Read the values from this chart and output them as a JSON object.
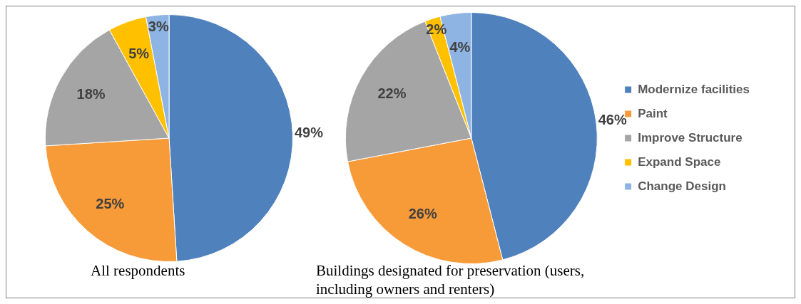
{
  "chart_data": [
    {
      "type": "pie",
      "title": "All respondents",
      "categories": [
        null,
        null,
        null,
        null,
        null
      ],
      "values": [
        49,
        25,
        18,
        5,
        3
      ],
      "colors": [
        "#4f81bd",
        "#f79a38",
        "#a5a5a5",
        "#ffc000",
        "#8eb4e3"
      ],
      "value_labels": [
        "49%",
        "25%",
        "18%",
        "5%",
        "3%"
      ],
      "legend": false
    },
    {
      "type": "pie",
      "title": "Buildings designated for preservation (users, including owners and renters)",
      "categories": [
        "Modernize facilities",
        "Paint",
        "Improve Structure",
        "Expand Space",
        "Change Design"
      ],
      "values": [
        46,
        26,
        22,
        2,
        4
      ],
      "colors": [
        "#4f81bd",
        "#f79a38",
        "#a5a5a5",
        "#ffc000",
        "#8eb4e3"
      ],
      "value_labels": [
        "46%",
        "26%",
        "22%",
        "2%",
        "4%"
      ],
      "legend": "right"
    }
  ]
}
